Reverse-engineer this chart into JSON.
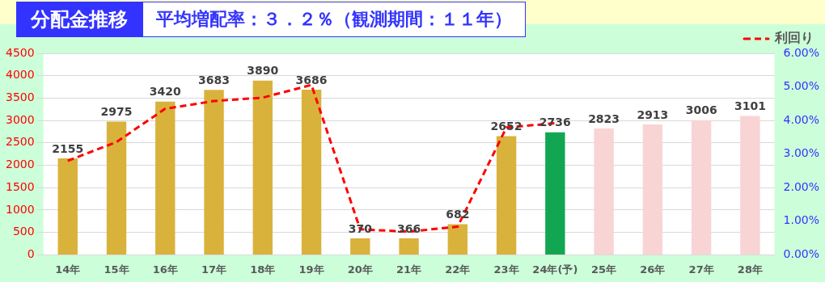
{
  "chart_data": {
    "type": "bar",
    "title": "分配金推移",
    "subtitle": "平均増配率：３．２％（観測期間：１１年）",
    "categories": [
      "14年",
      "15年",
      "16年",
      "17年",
      "18年",
      "19年",
      "20年",
      "21年",
      "22年",
      "23年",
      "24年(予)",
      "25年",
      "26年",
      "27年",
      "28年"
    ],
    "series": [
      {
        "value_labels": [
          "2155",
          "2975",
          "3420",
          "3683",
          "3890",
          "3686",
          "370",
          "366",
          "682",
          "2652",
          "2736",
          "2823",
          "2913",
          "3006",
          "3101"
        ],
        "colors": [
          "#d9b23c",
          "#d9b23c",
          "#d9b23c",
          "#d9b23c",
          "#d9b23c",
          "#d9b23c",
          "#d9b23c",
          "#d9b23c",
          "#d9b23c",
          "#d9b23c",
          "#12a653",
          "#f9d4d4",
          "#f9d4d4",
          "#f9d4d4",
          "#f9d4d4"
        ],
        "values": [
          2155,
          2975,
          3420,
          3683,
          3890,
          3686,
          370,
          366,
          682,
          2652,
          2736,
          2823,
          2913,
          3006,
          3101
        ]
      },
      {
        "type": "line",
        "name": "利回り",
        "color": "#ff0000",
        "axis": "y2",
        "line_style": "dashed",
        "marker": "none",
        "values": [
          2.8,
          3.36,
          4.35,
          4.58,
          4.68,
          5.06,
          0.76,
          0.69,
          0.84,
          3.79,
          3.92,
          null,
          null,
          null,
          null
        ]
      }
    ],
    "ylim": [
      0,
      4500
    ],
    "yticks": [
      0,
      500,
      1000,
      1500,
      2000,
      2500,
      3000,
      3500,
      4000,
      4500
    ],
    "y2lim": [
      0,
      6
    ],
    "y2ticks": [
      {
        "value": 0,
        "label": "0.00%"
      },
      {
        "value": 1,
        "label": "1.00%"
      },
      {
        "value": 2,
        "label": "2.00%"
      },
      {
        "value": 3,
        "label": "3.00%"
      },
      {
        "value": 4,
        "label": "4.00%"
      },
      {
        "value": 5,
        "label": "5.00%"
      },
      {
        "value": 6,
        "label": "6.00%"
      }
    ],
    "grid": "y",
    "legend": "top right"
  }
}
